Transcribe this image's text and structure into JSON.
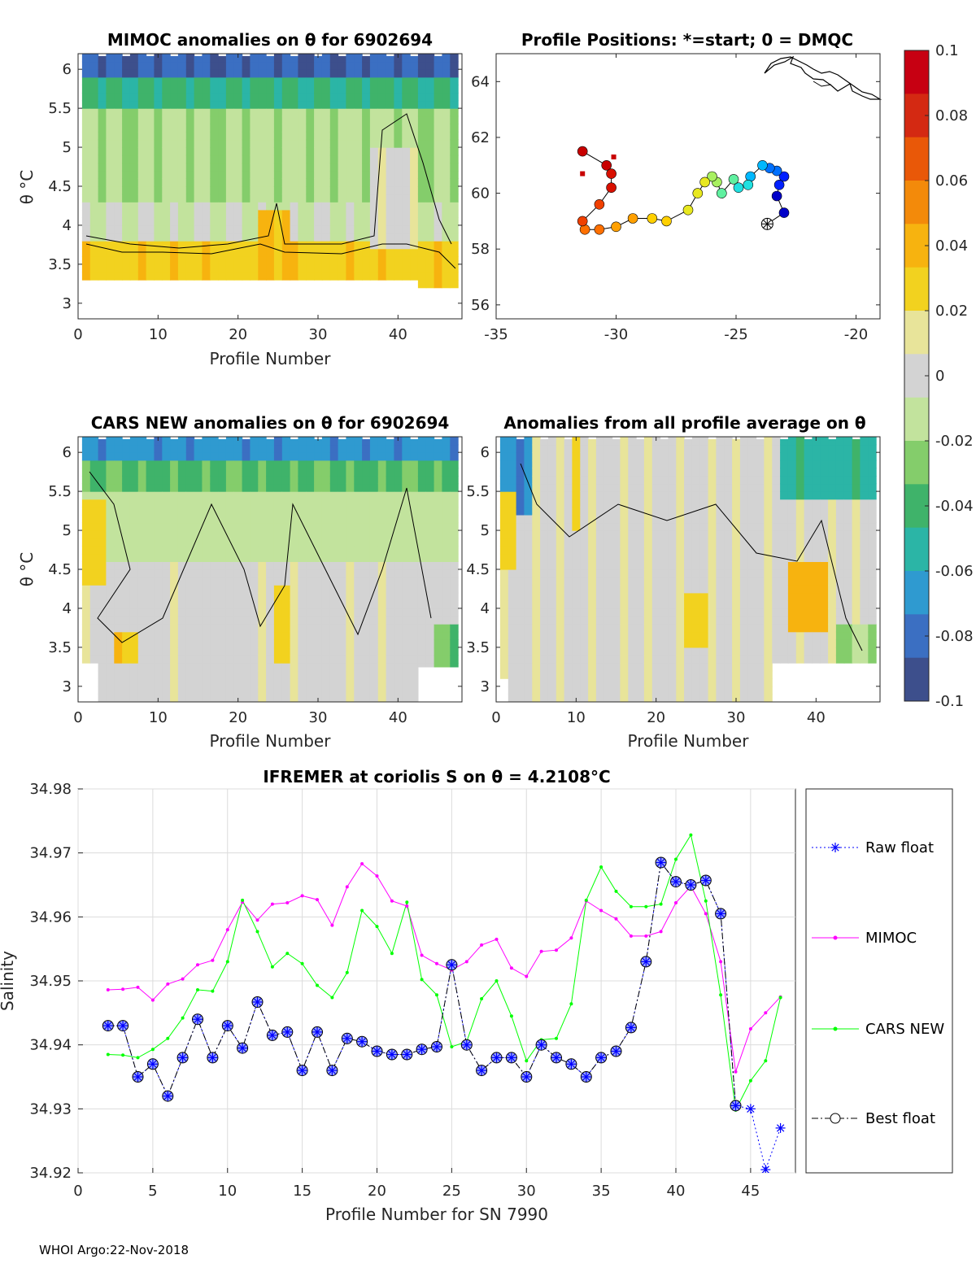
{
  "footer": "WHOI Argo:22-Nov-2018",
  "colorbar": {
    "min": -0.1,
    "max": 0.1,
    "tick_labels": [
      "0.1",
      "0.08",
      "0.06",
      "0.04",
      "0.02",
      "0",
      "-0.02",
      "-0.04",
      "-0.06",
      "-0.08",
      "-0.1"
    ],
    "colors": [
      "#3d4f8c",
      "#3b6fc2",
      "#2f9ad0",
      "#2bb5a6",
      "#3fb36a",
      "#84cd6b",
      "#c2e39d",
      "#d3d3d3",
      "#e8e49a",
      "#f2d21f",
      "#f7b30f",
      "#f38a0a",
      "#e95808",
      "#d42912",
      "#c70012"
    ]
  },
  "chart_data": [
    {
      "id": "mimoc",
      "type": "heatmap",
      "title": "MIMOC anomalies on θ  for 6902694",
      "xlabel": "Profile Number",
      "ylabel": "θ °C",
      "xlim": [
        0,
        48
      ],
      "ylim": [
        2.8,
        6.2
      ],
      "xticks": [
        "0",
        "10",
        "20",
        "30",
        "40"
      ],
      "yticks": [
        "3",
        "3.5",
        "4",
        "4.5",
        "5",
        "5.5",
        "6"
      ]
    },
    {
      "id": "positions",
      "type": "scatter",
      "title": "Profile Positions: *=start; 0 = DMQC",
      "xlim": [
        -35,
        -19
      ],
      "ylim": [
        55.5,
        65
      ],
      "xticks": [
        "-35",
        "-30",
        "-25",
        "-20"
      ],
      "yticks": [
        "56",
        "58",
        "60",
        "62",
        "64"
      ],
      "track_lon": [
        -23.7,
        -23.0,
        -23.3,
        -23.2,
        -23.0,
        -23.3,
        -23.6,
        -23.9,
        -24.4,
        -24.5,
        -24.9,
        -25.1,
        -25.6,
        -25.8,
        -26.0,
        -26.3,
        -26.6,
        -27.0,
        -27.9,
        -28.5,
        -29.3,
        -30.0,
        -30.7,
        -31.3,
        -31.4,
        -30.7,
        -30.2,
        -30.2,
        -30.4,
        -31.4
      ],
      "track_lat": [
        58.9,
        59.3,
        59.9,
        60.3,
        60.6,
        60.8,
        60.9,
        61.0,
        60.6,
        60.3,
        60.2,
        60.5,
        60.0,
        60.4,
        60.6,
        60.4,
        60.0,
        59.4,
        59.0,
        59.1,
        59.1,
        58.8,
        58.7,
        58.7,
        59.0,
        59.6,
        60.2,
        60.7,
        61.0,
        61.5
      ],
      "start": [
        -23.7,
        58.9
      ]
    },
    {
      "id": "cars",
      "type": "heatmap",
      "title": "CARS NEW anomalies on θ for 6902694",
      "xlabel": "Profile Number",
      "ylabel": "θ °C",
      "xlim": [
        0,
        48
      ],
      "ylim": [
        2.8,
        6.2
      ],
      "xticks": [
        "0",
        "10",
        "20",
        "30",
        "40"
      ],
      "yticks": [
        "3",
        "3.5",
        "4",
        "4.5",
        "5",
        "5.5",
        "6"
      ]
    },
    {
      "id": "avg",
      "type": "heatmap",
      "title": "Anomalies from all profile average on θ",
      "xlabel": "Profile Number",
      "xlim": [
        0,
        48
      ],
      "ylim": [
        2.8,
        6.2
      ],
      "xticks": [
        "0",
        "10",
        "20",
        "30",
        "40"
      ],
      "yticks": [
        "3",
        "3.5",
        "4",
        "4.5",
        "5",
        "5.5",
        "6"
      ]
    },
    {
      "id": "salinity",
      "type": "line",
      "title": "IFREMER at coriolis S on θ = 4.2108°C",
      "xlabel": "Profile Number for SN 7990",
      "ylabel": "Salinity",
      "xlim": [
        0,
        48
      ],
      "ylim": [
        34.92,
        34.98
      ],
      "xticks": [
        "0",
        "5",
        "10",
        "15",
        "20",
        "25",
        "30",
        "35",
        "40",
        "45"
      ],
      "yticks": [
        "34.92",
        "34.93",
        "34.94",
        "34.95",
        "34.96",
        "34.97",
        "34.98"
      ],
      "x": [
        2,
        3,
        4,
        5,
        6,
        7,
        8,
        9,
        10,
        11,
        12,
        13,
        14,
        15,
        16,
        17,
        18,
        19,
        20,
        21,
        22,
        23,
        24,
        25,
        26,
        27,
        28,
        29,
        30,
        31,
        32,
        33,
        34,
        35,
        36,
        37,
        38,
        39,
        40,
        41,
        42,
        43,
        44,
        45,
        46,
        47
      ],
      "series": [
        {
          "name": "Raw float",
          "color": "#0000ff",
          "values": [
            34.943,
            34.943,
            34.935,
            34.937,
            34.932,
            34.938,
            34.944,
            34.938,
            34.943,
            34.9395,
            34.9467,
            34.9415,
            34.942,
            34.936,
            34.942,
            34.936,
            34.941,
            34.9405,
            34.939,
            34.9385,
            34.9385,
            34.9393,
            34.9397,
            34.9525,
            34.94,
            34.936,
            34.938,
            34.938,
            34.935,
            34.94,
            34.938,
            34.937,
            34.935,
            34.938,
            34.939,
            34.9427,
            34.953,
            34.9685,
            34.9655,
            34.965,
            34.9657,
            34.9605,
            34.9305,
            34.93,
            34.9205,
            34.927
          ]
        },
        {
          "name": "MIMOC",
          "color": "#ff00ff",
          "values": [
            34.9486,
            34.9487,
            34.949,
            34.947,
            34.9495,
            34.9503,
            34.9525,
            34.9532,
            34.958,
            34.9623,
            34.9595,
            34.962,
            34.9622,
            34.9633,
            34.9627,
            34.9587,
            34.9647,
            34.9683,
            34.9664,
            34.9625,
            34.9617,
            34.954,
            34.9527,
            34.9517,
            34.953,
            34.9556,
            34.9565,
            34.952,
            34.9507,
            34.9546,
            34.9548,
            34.9567,
            34.9625,
            34.961,
            34.9597,
            34.957,
            34.957,
            34.9577,
            34.9622,
            34.9648,
            34.9605,
            34.953,
            34.9358,
            34.9425,
            34.945,
            34.9475
          ]
        },
        {
          "name": "CARS NEW",
          "color": "#00ff00",
          "values": [
            34.9385,
            34.9384,
            34.938,
            34.9393,
            34.941,
            34.9442,
            34.9486,
            34.9484,
            34.953,
            34.9626,
            34.9577,
            34.9522,
            34.9543,
            34.9527,
            34.9493,
            34.9474,
            34.9513,
            34.961,
            34.9585,
            34.9543,
            34.9623,
            34.9502,
            34.9478,
            34.9397,
            34.9405,
            34.9472,
            34.95,
            34.9445,
            34.9375,
            34.9408,
            34.941,
            34.9464,
            34.9626,
            34.9678,
            34.964,
            34.9616,
            34.9616,
            34.962,
            34.969,
            34.9728,
            34.9625,
            34.9478,
            34.9298,
            34.9344,
            34.9375,
            34.9474
          ]
        },
        {
          "name": "Best float",
          "color": "#000000",
          "values": [
            34.943,
            34.943,
            34.935,
            34.937,
            34.932,
            34.938,
            34.944,
            34.938,
            34.943,
            34.9395,
            34.9467,
            34.9415,
            34.942,
            34.936,
            34.942,
            34.936,
            34.941,
            34.9405,
            34.939,
            34.9385,
            34.9385,
            34.9393,
            34.9397,
            34.9525,
            34.94,
            34.936,
            34.938,
            34.938,
            34.935,
            34.94,
            34.938,
            34.937,
            34.935,
            34.938,
            34.939,
            34.9427,
            34.953,
            34.9685,
            34.9655,
            34.965,
            34.9657,
            34.9605,
            34.9305,
            null,
            null,
            null
          ]
        }
      ]
    }
  ]
}
